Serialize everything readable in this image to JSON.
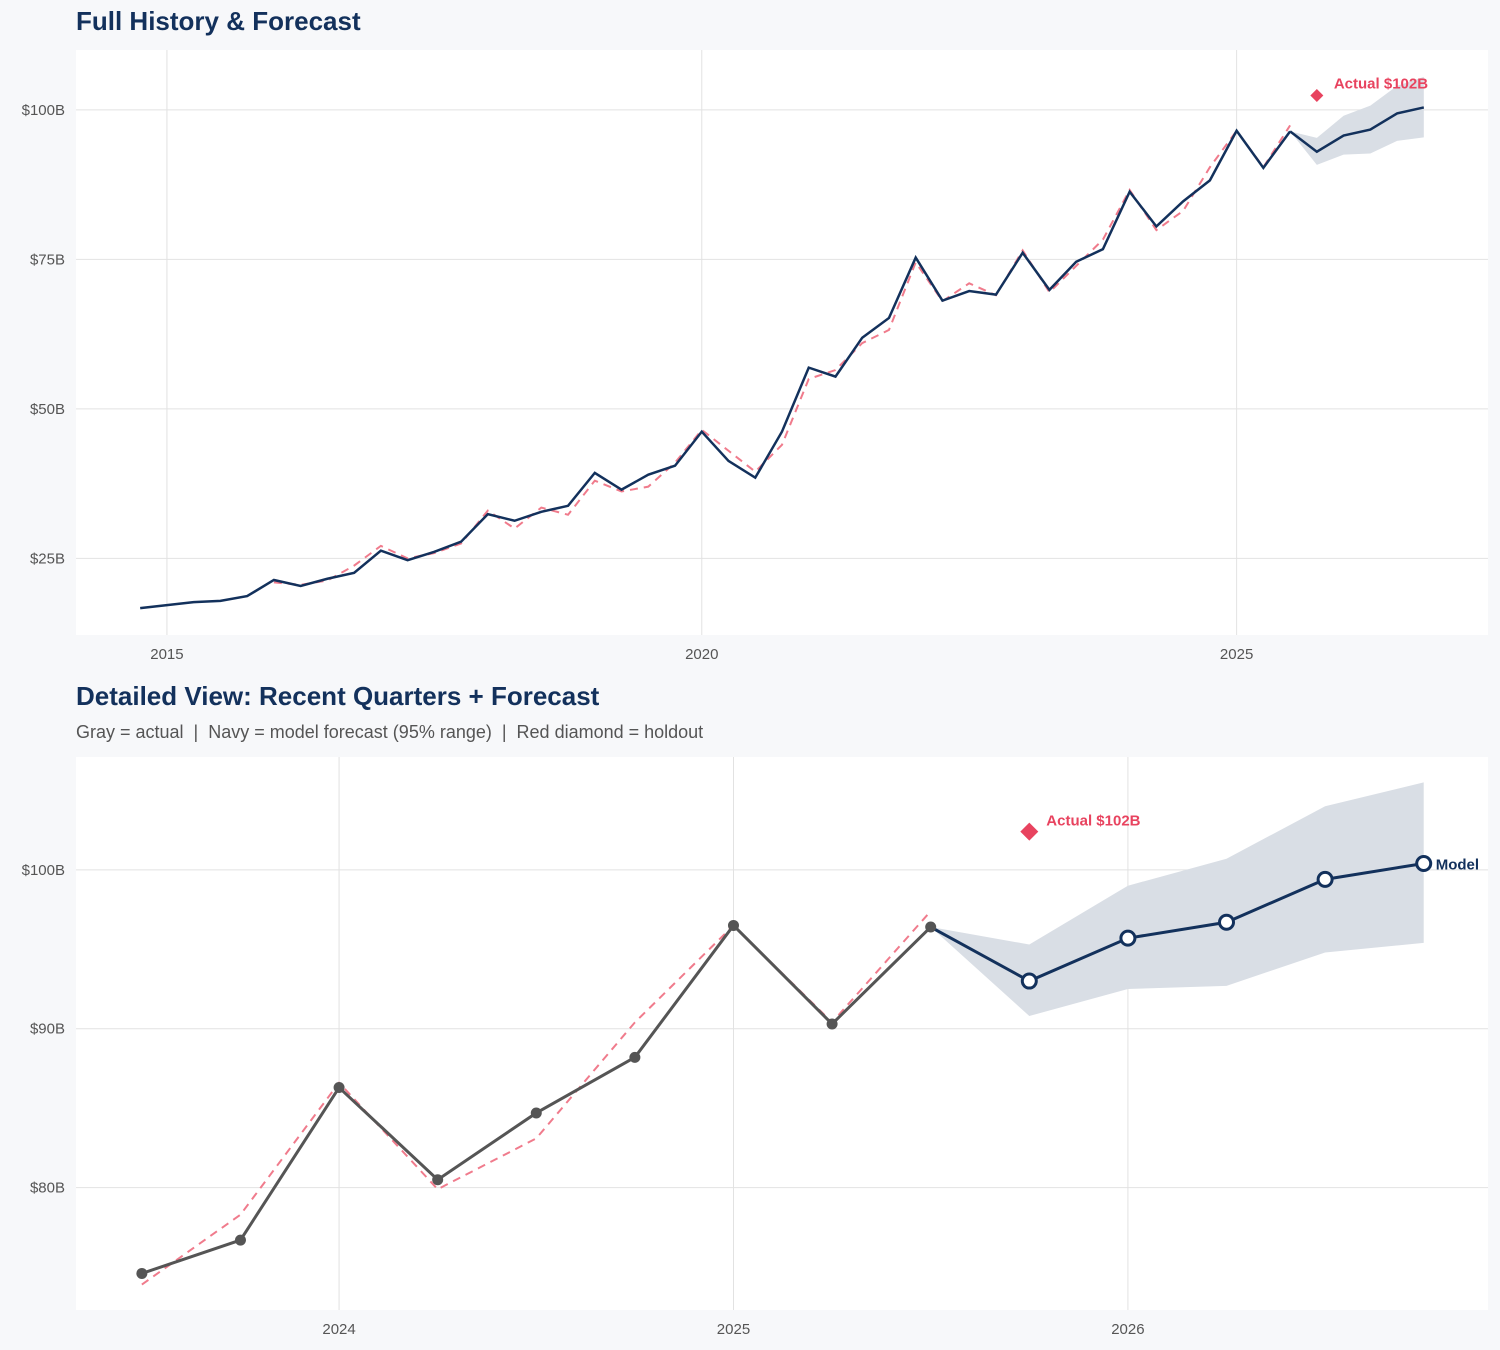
{
  "chart_data": [
    {
      "type": "line",
      "title": "Full History & Forecast",
      "xlim": [
        2014.15,
        2027.35
      ],
      "ylim": [
        12.2,
        110
      ],
      "x_ticks": [
        2015,
        2020,
        2025
      ],
      "x_tick_labels": [
        "2015",
        "2020",
        "2025"
      ],
      "y_ticks": [
        25,
        50,
        75,
        100
      ],
      "y_tick_labels": [
        "$25B",
        "$50B",
        "$75B",
        "$100B"
      ],
      "grid": true,
      "x_start": 2014.75,
      "step": 0.25,
      "actual": [
        16.7,
        17.2,
        17.7,
        17.9,
        18.7,
        21.4,
        20.4,
        21.6,
        22.6,
        26.3,
        24.7,
        26.1,
        27.8,
        32.4,
        31.3,
        32.8,
        33.8,
        39.3,
        36.5,
        39.0,
        40.5,
        46.2,
        41.3,
        38.5,
        46.2,
        56.9,
        55.4,
        61.9,
        65.2,
        75.3,
        68.1,
        69.7,
        69.1,
        76.1,
        69.9,
        74.6,
        76.7,
        86.3,
        80.5,
        84.7,
        88.2,
        96.5,
        90.3,
        96.4
      ],
      "fitted_x_start": 2016.0,
      "fitted": [
        21.0,
        20.6,
        21.3,
        23.8,
        27.1,
        25.0,
        25.9,
        27.5,
        33.0,
        30.0,
        33.5,
        32.3,
        38.0,
        36.2,
        37.0,
        41.0,
        46.5,
        43.0,
        39.5,
        44.0,
        55.0,
        56.5,
        61.0,
        63.2,
        74.5,
        68.0,
        71.0,
        69.0,
        76.5,
        69.5,
        73.9,
        78.3,
        86.6,
        79.9,
        83.1,
        90.4,
        96.5,
        90.4,
        97.4
      ],
      "forecast_x": [
        2025.5,
        2025.75,
        2026.0,
        2026.25,
        2026.5,
        2026.75
      ],
      "forecast": [
        96.4,
        93.0,
        95.7,
        96.7,
        99.4,
        100.4
      ],
      "forecast_lower": [
        96.4,
        90.8,
        92.5,
        92.7,
        94.8,
        95.4
      ],
      "forecast_upper": [
        96.4,
        95.3,
        99.0,
        100.7,
        104.0,
        105.5
      ],
      "holdout": {
        "x": 2025.75,
        "y": 102.4,
        "label": "Actual $102B"
      }
    },
    {
      "type": "line",
      "title": "Detailed View: Recent Quarters + Forecast",
      "subtitle": "Gray = actual  |  Navy = model forecast (95% range)  |  Red diamond = holdout",
      "xlim": [
        2023.333,
        2026.913
      ],
      "ylim": [
        72.3,
        107.1
      ],
      "x_ticks": [
        2024,
        2025,
        2026
      ],
      "x_tick_labels": [
        "2024",
        "2025",
        "2026"
      ],
      "y_ticks": [
        80,
        90,
        100
      ],
      "y_tick_labels": [
        "$80B",
        "$90B",
        "$100B"
      ],
      "grid": true,
      "actual_x": [
        2023.5,
        2023.75,
        2024.0,
        2024.25,
        2024.5,
        2024.75,
        2025.0,
        2025.25,
        2025.5
      ],
      "actual": [
        74.6,
        76.7,
        86.3,
        80.5,
        84.7,
        88.2,
        96.5,
        90.3,
        96.4
      ],
      "fitted": [
        73.9,
        78.3,
        86.6,
        79.9,
        83.1,
        90.4,
        96.5,
        90.4,
        97.4
      ],
      "forecast_x": [
        2025.5,
        2025.75,
        2026.0,
        2026.25,
        2026.5,
        2026.75
      ],
      "forecast": [
        96.4,
        93.0,
        95.7,
        96.7,
        99.4,
        100.4
      ],
      "forecast_lower": [
        96.4,
        90.8,
        92.5,
        92.7,
        94.8,
        95.4
      ],
      "forecast_upper": [
        96.4,
        95.3,
        99.0,
        100.7,
        104.0,
        105.5
      ],
      "forecast_label": "Model",
      "holdout": {
        "x": 2025.75,
        "y": 102.4,
        "label": "Actual $102B"
      }
    }
  ],
  "colors": {
    "navy": "#13315c",
    "actual_gray": "#555555",
    "fitted_red": "#f07b8c",
    "holdout_red": "#e8435f",
    "band": "#d9dee5"
  }
}
